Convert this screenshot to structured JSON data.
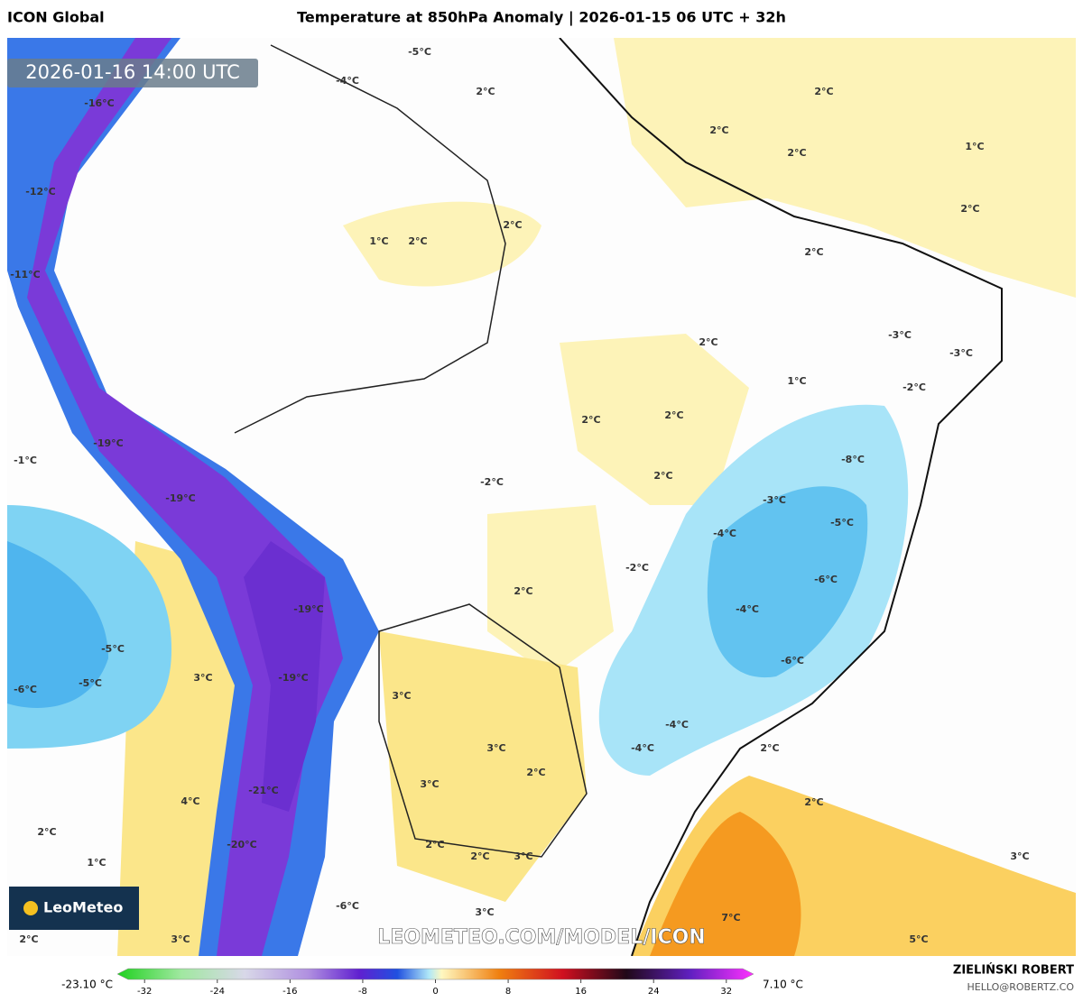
{
  "header": {
    "model": "ICON Global",
    "title": "Temperature at 850hPa Anomaly | 2026-01-15 06 UTC + 32h"
  },
  "map": {
    "valid_time": "2026-01-16 14:00 UTC",
    "watermark": "LEOMETEO.COM/MODEL/ICON",
    "logo": "LeoMeteo",
    "labels": [
      "-5°C",
      "-4°C",
      "-16°C",
      "2°C",
      "2°C",
      "2°C",
      "2°C",
      "1°C",
      "-12°C",
      "2°C",
      "2°C",
      "1°C",
      "2°C",
      "2°C",
      "-11°C",
      "-3°C",
      "2°C",
      "-3°C",
      "1°C",
      "-2°C",
      "2°C",
      "2°C",
      "-19°C",
      "-1°C",
      "-8°C",
      "2°C",
      "-2°C",
      "-19°C",
      "-3°C",
      "-5°C",
      "-4°C",
      "-2°C",
      "-6°C",
      "2°C",
      "-19°C",
      "-4°C",
      "-5°C",
      "-6°C",
      "-19°C",
      "3°C",
      "-5°C",
      "-6°C",
      "3°C",
      "-4°C",
      "-4°C",
      "2°C",
      "3°C",
      "2°C",
      "3°C",
      "-21°C",
      "4°C",
      "2°C",
      "2°C",
      "-20°C",
      "2°C",
      "2°C",
      "3°C",
      "3°C",
      "1°C",
      "-6°C",
      "3°C",
      "7°C",
      "5°C",
      "2°C",
      "3°C"
    ]
  },
  "colorbar": {
    "min_label": "-23.10 °C",
    "max_label": "7.10 °C",
    "lim": [
      -35,
      35
    ],
    "ticks": [
      -32,
      -24,
      -16,
      -8,
      0,
      8,
      16,
      24,
      32
    ]
  },
  "footer": {
    "author": "ZIELIŃSKI ROBERT",
    "contact": "HELLO@ROBERTZ.CO"
  }
}
